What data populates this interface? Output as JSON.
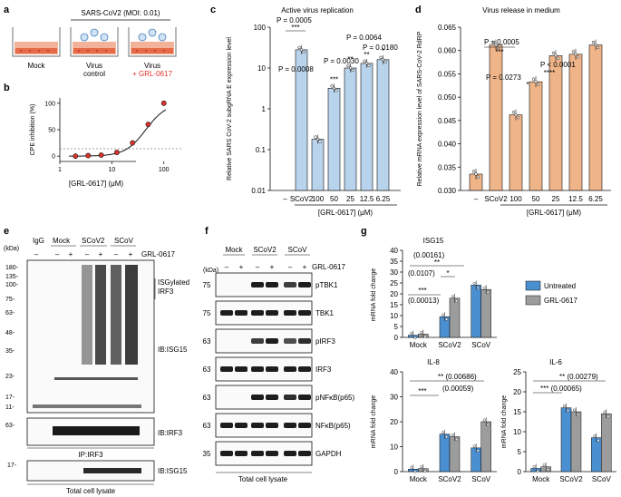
{
  "colors": {
    "blue_bar": "#b8d3ec",
    "orange_bar": "#f0b489",
    "untreated": "#4a8fd0",
    "grl": "#9c9c9c",
    "red": "#e0322c",
    "dish_pink": "#f3b39a"
  },
  "panels": {
    "a": {
      "label": "a",
      "header": "SARS-CoV2 (MOI: 0.01)",
      "mock": "Mock",
      "virus_control_1": "Virus",
      "virus_control_2": "control",
      "virus_grl_1": "Virus",
      "virus_grl_2": "+ GRL-0617"
    },
    "b": {
      "label": "b",
      "ylabel": "CPE inhibition (%)",
      "xlabel": "[GRL-0617] (μM)",
      "yticks": [
        "100",
        "50",
        "0"
      ],
      "xticks": [
        "1",
        "10",
        "100"
      ]
    },
    "c": {
      "label": "c"
    },
    "d": {
      "label": "d"
    },
    "e": {
      "label": "e",
      "kda": "(kDa)",
      "lanes": [
        "IgG",
        "Mock",
        "SCoV2",
        "SCoV"
      ],
      "grl_label": "GRL-0617",
      "signs": [
        "–",
        "–",
        "+",
        "–",
        "+",
        "–",
        "+"
      ],
      "markers": [
        "180-",
        "135-",
        "100-",
        "75-",
        "63-",
        "48-",
        "35-",
        "23-",
        "17-",
        "11-"
      ],
      "isgylated_1": "ISGylated",
      "isgylated_2": "IRF3",
      "ib_isg15": "IB:ISG15",
      "ib_irf3_marker": "63-",
      "ib_irf3": "IB:IRF3",
      "ip_irf3": "IP:IRF3",
      "bottom_marker": "17-",
      "bottom_ib": "IB:ISG15",
      "total": "Total cell lysate"
    },
    "f": {
      "label": "f",
      "kda": "(kDa)",
      "lanes": [
        "Mock",
        "SCoV2",
        "SCoV"
      ],
      "grl_label": "GRL-0617",
      "signs": [
        "–",
        "+",
        "–",
        "+",
        "–",
        "+"
      ],
      "rows": [
        {
          "marker": "75",
          "name": "pTBK1"
        },
        {
          "marker": "75",
          "name": "TBK1"
        },
        {
          "marker": "63",
          "name": "pIRF3"
        },
        {
          "marker": "63",
          "name": "IRF3"
        },
        {
          "marker": "63",
          "name": "pNFκB(p65)"
        },
        {
          "marker": "63",
          "name": "NFκB(p65)"
        },
        {
          "marker": "35",
          "name": "GAPDH"
        }
      ],
      "total": "Total cell lysate"
    },
    "g": {
      "label": "g",
      "legend": [
        "Untreated",
        "GRL-0617"
      ],
      "ylabel": "mRNA fold change",
      "isg15": {
        "title": "ISG15",
        "yticks": [
          "40",
          "35",
          "30",
          "25",
          "20",
          "15",
          "10",
          "5",
          "0"
        ],
        "xlabels": [
          "Mock",
          "SCoV2",
          "SCoV"
        ],
        "annotations": [
          "(0.00161)",
          "**",
          "(0.0107)",
          "*",
          "***",
          "(0.00013)"
        ]
      },
      "il8": {
        "title": "IL-8",
        "yticks": [
          "40",
          "30",
          "20",
          "10",
          "0"
        ],
        "xlabels": [
          "Mock",
          "SCoV2",
          "SCoV"
        ],
        "annotations": [
          "** (0.00686)",
          "***",
          "(0.00059)"
        ]
      },
      "il6": {
        "title": "IL-6",
        "yticks": [
          "25",
          "20",
          "15",
          "10",
          "5",
          "0"
        ],
        "xlabels": [
          "Mock",
          "SCoV2",
          "SCoV"
        ],
        "annotations": [
          "** (0.00279)",
          "*** (0.00065)"
        ]
      }
    }
  },
  "chart_data": [
    {
      "type": "scatter",
      "title": "",
      "xlabel": "[GRL-0617] (μM)",
      "ylabel": "CPE inhibition (%)",
      "xscale": "log",
      "xlim": [
        1,
        200
      ],
      "ylim": [
        -10,
        110
      ],
      "x": [
        2,
        3.5,
        6.25,
        12.5,
        25,
        50,
        100
      ],
      "y": [
        0,
        1,
        2,
        7,
        25,
        60,
        100
      ]
    },
    {
      "type": "bar",
      "title": "Active virus replication",
      "ylabel": "Relative SARS CoV-2 subgRNA E expression level",
      "yscale": "log",
      "ylim": [
        0.01,
        100
      ],
      "yticks": [
        "0.01",
        "0.1",
        "1",
        "10",
        "100"
      ],
      "categories": [
        "–",
        "SCoV2",
        "100",
        "50",
        "25",
        "12.5",
        "6.25"
      ],
      "values": [
        0,
        28,
        0.18,
        3.2,
        10,
        13,
        16
      ],
      "xlabel": "[GRL-0617] (μM)",
      "annotations": [
        "P = 0.0005",
        "***",
        "P = 0.0008",
        "***",
        "P = 0.0030",
        "**",
        "P = 0.0064",
        "**",
        "P = 0.0180",
        "*"
      ]
    },
    {
      "type": "bar",
      "title": "Virus release in medium",
      "ylabel": "Relative mRNA expression level of SARS-CoV-2 RdRP",
      "ylim": [
        0.03,
        0.065
      ],
      "yticks": [
        "0.030",
        "0.035",
        "0.040",
        "0.045",
        "0.050",
        "0.055",
        "0.060",
        "0.065"
      ],
      "categories": [
        "–",
        "SCoV2",
        "100",
        "50",
        "25",
        "12.5",
        "6.25"
      ],
      "values": [
        0.0335,
        0.0612,
        0.0462,
        0.0533,
        0.0589,
        0.0592,
        0.0612
      ],
      "xlabel": "[GRL-0617] (μM)",
      "annotations": [
        "P = 0.0005",
        "***",
        "P = 0.0273",
        "*",
        "P < 0.0001",
        "****"
      ]
    },
    {
      "type": "bar",
      "title": "ISG15",
      "ylabel": "mRNA fold change",
      "categories": [
        "Mock",
        "SCoV2",
        "SCoV"
      ],
      "ylim": [
        0,
        40
      ],
      "series": [
        {
          "name": "Untreated",
          "values": [
            1,
            9.5,
            24
          ]
        },
        {
          "name": "GRL-0617",
          "values": [
            1.5,
            18,
            22
          ]
        }
      ]
    },
    {
      "type": "bar",
      "title": "IL-8",
      "ylabel": "mRNA fold change",
      "categories": [
        "Mock",
        "SCoV2",
        "SCoV"
      ],
      "ylim": [
        0,
        40
      ],
      "series": [
        {
          "name": "Untreated",
          "values": [
            1,
            15,
            9.5
          ]
        },
        {
          "name": "GRL-0617",
          "values": [
            1.2,
            14,
            20
          ]
        }
      ]
    },
    {
      "type": "bar",
      "title": "IL-6",
      "ylabel": "mRNA fold change",
      "categories": [
        "Mock",
        "SCoV2",
        "SCoV"
      ],
      "ylim": [
        0,
        25
      ],
      "series": [
        {
          "name": "Untreated",
          "values": [
            0.8,
            16,
            8.5
          ]
        },
        {
          "name": "GRL-0617",
          "values": [
            1.2,
            15,
            14.5
          ]
        }
      ]
    }
  ]
}
